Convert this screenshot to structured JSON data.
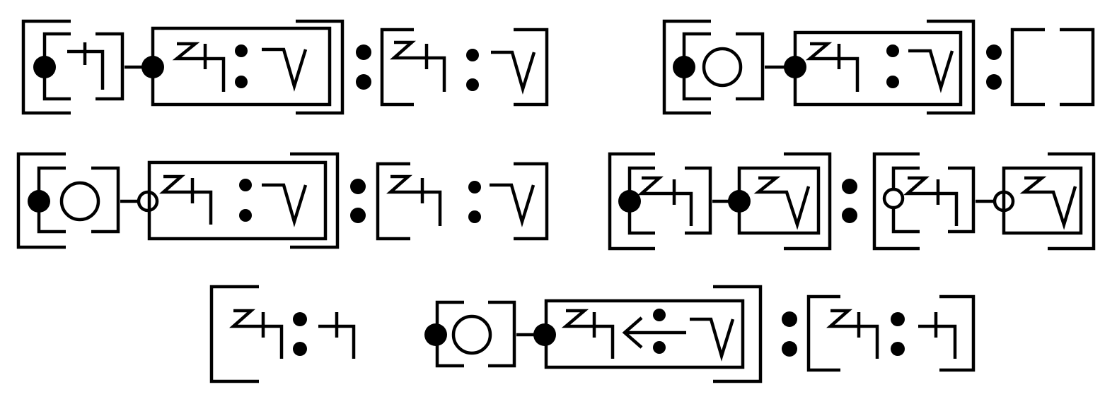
{
  "diagram": {
    "formulas": [
      {
        "id": "formula-1"
      },
      {
        "id": "formula-2"
      },
      {
        "id": "formula-3"
      },
      {
        "id": "formula-4"
      },
      {
        "id": "formula-5"
      }
    ],
    "colors": {
      "ink": "#000000",
      "background": "#ffffff"
    }
  }
}
